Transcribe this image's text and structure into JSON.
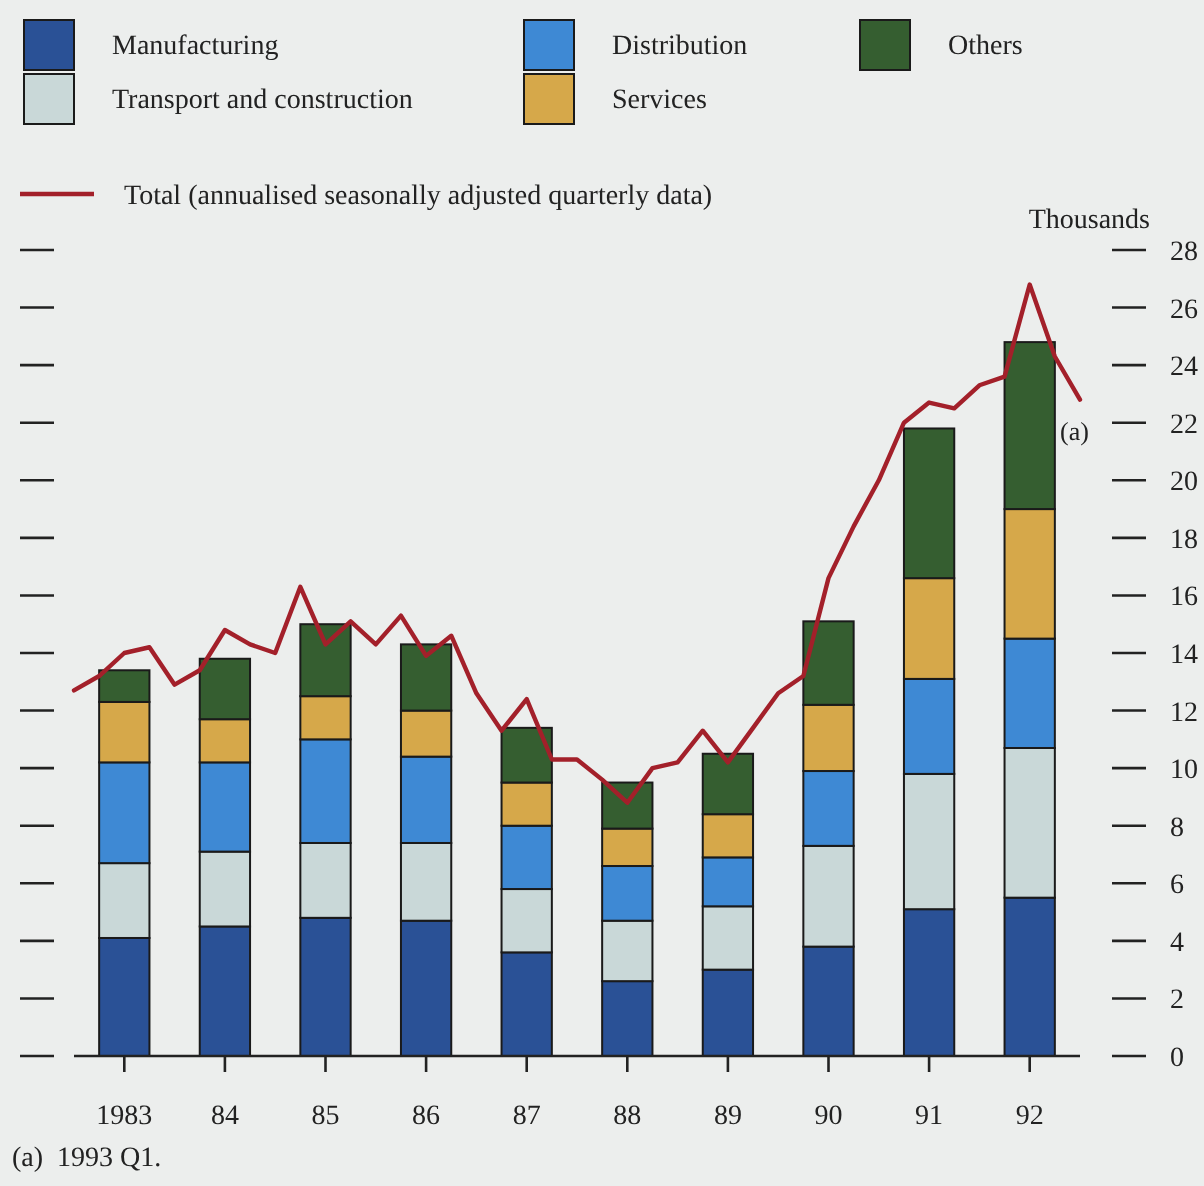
{
  "chart_data": {
    "type": "bar",
    "stacked": true,
    "ylabel": "Thousands",
    "x": [
      1983,
      1984,
      1985,
      1986,
      1987,
      1988,
      1989,
      1990,
      1991,
      1992
    ],
    "xlim": [
      1982.5,
      1992.5
    ],
    "xticks": [
      {
        "value": 1983,
        "label": "1983"
      },
      {
        "value": 1984,
        "label": "84"
      },
      {
        "value": 1985,
        "label": "85"
      },
      {
        "value": 1986,
        "label": "86"
      },
      {
        "value": 1987,
        "label": "87"
      },
      {
        "value": 1988,
        "label": "88"
      },
      {
        "value": 1989,
        "label": "89"
      },
      {
        "value": 1990,
        "label": "90"
      },
      {
        "value": 1991,
        "label": "91"
      },
      {
        "value": 1992,
        "label": "92"
      }
    ],
    "ylim": [
      0,
      28
    ],
    "yticks": [
      0,
      2,
      4,
      6,
      8,
      10,
      12,
      14,
      16,
      18,
      20,
      22,
      24,
      26,
      28
    ],
    "grid": false,
    "legend": "top",
    "series": [
      {
        "name": "Manufacturing",
        "color": "#2a5196",
        "values": [
          4.1,
          4.5,
          4.8,
          4.7,
          3.6,
          2.6,
          3.0,
          3.8,
          5.1,
          5.5
        ]
      },
      {
        "name": "Transport and construction",
        "color": "#c9d8d8",
        "values": [
          2.6,
          2.6,
          2.6,
          2.7,
          2.2,
          2.1,
          2.2,
          3.5,
          4.7,
          5.2
        ]
      },
      {
        "name": "Distribution",
        "color": "#3e89d4",
        "values": [
          3.5,
          3.1,
          3.6,
          3.0,
          2.2,
          1.9,
          1.7,
          2.6,
          3.3,
          3.8
        ]
      },
      {
        "name": "Services",
        "color": "#d6a84a",
        "values": [
          2.1,
          1.5,
          1.5,
          1.6,
          1.5,
          1.3,
          1.5,
          2.3,
          3.5,
          4.5
        ]
      },
      {
        "name": "Others",
        "color": "#355e30",
        "values": [
          1.1,
          2.1,
          2.5,
          2.3,
          1.9,
          1.6,
          2.1,
          2.9,
          5.2,
          5.8
        ]
      },
      {
        "name": "Total (annualised seasonally adjusted quarterly data)",
        "type": "line",
        "color": "#a3202a",
        "x": [
          1982.5,
          1982.75,
          1983,
          1983.25,
          1983.5,
          1983.75,
          1984,
          1984.25,
          1984.5,
          1984.75,
          1985,
          1985.25,
          1985.5,
          1985.75,
          1986,
          1986.25,
          1986.5,
          1986.75,
          1987,
          1987.25,
          1987.5,
          1987.75,
          1988,
          1988.25,
          1988.5,
          1988.75,
          1989,
          1989.25,
          1989.5,
          1989.75,
          1990,
          1990.25,
          1990.5,
          1990.75,
          1991,
          1991.25,
          1991.5,
          1991.75,
          1992,
          1992.25,
          1992.5
        ],
        "values": [
          12.7,
          13.2,
          14.0,
          14.2,
          12.9,
          13.4,
          14.8,
          14.3,
          14.0,
          16.3,
          14.3,
          15.1,
          14.3,
          15.3,
          13.9,
          14.6,
          12.6,
          11.3,
          12.4,
          10.3,
          10.3,
          9.6,
          8.8,
          10.0,
          10.2,
          11.3,
          10.2,
          11.4,
          12.6,
          13.2,
          16.6,
          18.4,
          20.0,
          22.0,
          22.7,
          22.5,
          23.3,
          23.6,
          26.8,
          24.3,
          22.8
        ]
      }
    ],
    "annotations": [
      {
        "text": "(a)",
        "x": 1992.5,
        "y": 22.8
      },
      "(a)  1993 Q1."
    ]
  }
}
